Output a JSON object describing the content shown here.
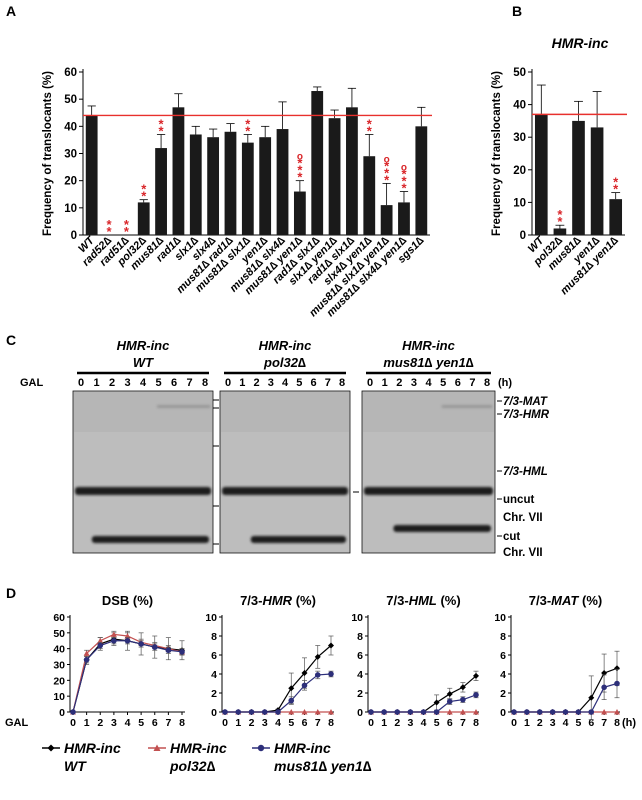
{
  "panels": {
    "A": "A",
    "B": "B",
    "C": "C",
    "D": "D"
  },
  "colors": {
    "bar": "#1a1a1a",
    "reference_line": "#e8302d",
    "significance": "#d9262a",
    "wt_series": "#000000",
    "pol32_series": "#c25050",
    "mus81yen1_series": "#2d2f7a",
    "gel_bg": "#b8b8b8"
  },
  "chart_data": [
    {
      "type": "bar",
      "panel": "A",
      "ylabel": "Frequency of translocants (%)",
      "ylim": [
        0,
        60
      ],
      "yticks": [
        0,
        10,
        20,
        30,
        40,
        50,
        60
      ],
      "reference_line": 44,
      "categories": [
        "WT",
        "rad52∆",
        "rad51∆",
        "pol32∆",
        "mus81∆",
        "rad1∆",
        "slx1∆",
        "slx4∆",
        "mus81∆ rad1∆",
        "mus81∆ slx1∆",
        "yen1∆",
        "mus81∆ slx4∆",
        "mus81∆ yen1∆",
        "rad1∆ slx1∆",
        "slx1∆ yen1∆",
        "rad1∆ slx1∆",
        "slx4∆ yen1∆",
        "mus81∆ slx1∆ yen1∆",
        "mus81∆ slx4∆ yen1∆",
        "sgs1∆"
      ],
      "values": [
        44,
        0,
        0,
        12,
        32,
        47,
        37,
        36,
        38,
        34,
        36,
        39,
        16,
        53,
        43,
        47,
        29,
        11,
        12,
        40
      ],
      "errors": [
        3.5,
        0,
        0,
        1,
        5,
        5,
        3,
        3,
        3,
        3,
        4,
        10,
        4,
        1.5,
        3,
        7,
        8,
        8,
        4,
        7
      ],
      "stars": [
        "",
        "**",
        "**",
        "**",
        "**",
        "",
        "",
        "",
        "",
        "**",
        "",
        "",
        "***",
        "",
        "",
        "",
        "**",
        "***",
        "***",
        ""
      ],
      "circles": [
        "",
        "",
        "",
        "",
        "",
        "",
        "",
        "",
        "",
        "",
        "",
        "",
        "o",
        "",
        "",
        "",
        "",
        "o",
        "o",
        ""
      ]
    },
    {
      "type": "bar",
      "panel": "B",
      "title": "HMR-inc",
      "ylabel": "Frequency of translocants (%)",
      "ylim": [
        0,
        50
      ],
      "yticks": [
        0,
        10,
        20,
        30,
        40,
        50
      ],
      "reference_line": 37,
      "categories": [
        "WT",
        "pol32∆",
        "mus81∆",
        "yen1∆",
        "mus81∆ yen1∆"
      ],
      "values": [
        37,
        2,
        35,
        33,
        11
      ],
      "errors": [
        9,
        1,
        6,
        11,
        2
      ],
      "stars": [
        "",
        "**",
        "",
        "",
        "**"
      ]
    },
    {
      "type": "line",
      "panel": "D",
      "title": "DSB (%)",
      "ylim": [
        0,
        60
      ],
      "yticks": [
        0,
        10,
        20,
        30,
        40,
        50,
        60
      ],
      "x": [
        0,
        1,
        2,
        3,
        4,
        5,
        6,
        7,
        8
      ],
      "series": [
        {
          "name": "HMR-inc WT",
          "values": [
            0,
            33,
            43,
            46,
            45,
            43,
            41,
            40,
            39
          ],
          "errors": [
            0,
            3,
            4,
            4,
            6,
            7,
            7,
            7,
            6
          ]
        },
        {
          "name": "HMR-inc pol32∆",
          "values": [
            0,
            37,
            45,
            49,
            48,
            44,
            42,
            40,
            38
          ],
          "errors": [
            0,
            2,
            2,
            2,
            2,
            2,
            2,
            2,
            2
          ]
        },
        {
          "name": "HMR-inc mus81∆ yen1∆",
          "values": [
            0,
            33,
            42,
            45,
            45,
            43,
            41,
            39,
            38
          ],
          "errors": [
            0,
            2,
            2,
            2,
            2,
            2,
            2,
            2,
            2
          ]
        }
      ]
    },
    {
      "type": "line",
      "panel": "D",
      "title": "7/3-HMR (%)",
      "ylim": [
        0,
        10
      ],
      "yticks": [
        0,
        2,
        4,
        6,
        8,
        10
      ],
      "x": [
        0,
        1,
        2,
        3,
        4,
        5,
        6,
        7,
        8
      ],
      "series": [
        {
          "name": "HMR-inc WT",
          "values": [
            0,
            0,
            0,
            0,
            0.2,
            2.5,
            4.1,
            5.8,
            7
          ],
          "errors": [
            0,
            0,
            0,
            0,
            0.1,
            1.6,
            1.6,
            1.2,
            1
          ]
        },
        {
          "name": "HMR-inc pol32∆",
          "values": [
            0,
            0,
            0,
            0,
            0,
            0,
            0,
            0,
            0
          ],
          "errors": [
            0,
            0,
            0,
            0,
            0,
            0,
            0,
            0,
            0
          ]
        },
        {
          "name": "HMR-inc mus81∆ yen1∆",
          "values": [
            0,
            0,
            0,
            0,
            0,
            1.2,
            2.8,
            3.9,
            4
          ],
          "errors": [
            0,
            0,
            0,
            0,
            0,
            0.4,
            0.5,
            0.4,
            0.3
          ]
        }
      ]
    },
    {
      "type": "line",
      "panel": "D",
      "title": "7/3-HML (%)",
      "ylim": [
        0,
        10
      ],
      "yticks": [
        0,
        2,
        4,
        6,
        8,
        10
      ],
      "x": [
        0,
        1,
        2,
        3,
        4,
        5,
        6,
        7,
        8
      ],
      "series": [
        {
          "name": "HMR-inc WT",
          "values": [
            0,
            0,
            0,
            0,
            0,
            1,
            1.9,
            2.6,
            3.8
          ],
          "errors": [
            0,
            0,
            0,
            0,
            0,
            0.8,
            0.6,
            0.5,
            0.5
          ]
        },
        {
          "name": "HMR-inc pol32∆",
          "values": [
            0,
            0,
            0,
            0,
            0,
            0,
            0,
            0,
            0
          ],
          "errors": [
            0,
            0,
            0,
            0,
            0,
            0,
            0,
            0,
            0
          ]
        },
        {
          "name": "HMR-inc mus81∆ yen1∆",
          "values": [
            0,
            0,
            0,
            0,
            0,
            0,
            1.1,
            1.3,
            1.8
          ],
          "errors": [
            0,
            0,
            0,
            0,
            0,
            0,
            0.3,
            0.3,
            0.3
          ]
        }
      ]
    },
    {
      "type": "line",
      "panel": "D",
      "title": "7/3-MAT (%)",
      "ylim": [
        0,
        10
      ],
      "yticks": [
        0,
        2,
        4,
        6,
        8,
        10
      ],
      "x": [
        0,
        1,
        2,
        3,
        4,
        5,
        6,
        7,
        8
      ],
      "series": [
        {
          "name": "HMR-inc WT",
          "values": [
            0,
            0,
            0,
            0,
            0,
            0,
            1.5,
            4.1,
            4.6
          ],
          "errors": [
            0,
            0,
            0,
            0,
            0,
            0,
            2.3,
            2,
            1.8
          ]
        },
        {
          "name": "HMR-inc pol32∆",
          "values": [
            0,
            0,
            0,
            0,
            0,
            0,
            0,
            0,
            0
          ],
          "errors": [
            0,
            0,
            0,
            0,
            0,
            0,
            0,
            0,
            0
          ]
        },
        {
          "name": "HMR-inc mus81∆ yen1∆",
          "values": [
            0,
            0,
            0,
            0,
            0,
            0,
            0,
            2.6,
            3
          ],
          "errors": [
            0,
            0,
            0,
            0,
            0,
            0,
            0,
            1.3,
            1.5
          ]
        }
      ]
    }
  ],
  "panelD": {
    "x_prefix": "GAL",
    "x_unit": "(h)"
  },
  "gel": {
    "gal_label": "GAL",
    "lanes": [
      "0",
      "1",
      "2",
      "3",
      "4",
      "5",
      "6",
      "7",
      "8"
    ],
    "unit": "(h)",
    "strains": [
      {
        "line1": "HMR-inc",
        "line2": "WT"
      },
      {
        "line1": "HMR-inc",
        "line2": "pol32∆"
      },
      {
        "line1": "HMR-inc",
        "line2": "mus81∆ yen1∆"
      }
    ],
    "band_labels": {
      "mat": "7/3-MAT",
      "hmr": "7/3-HMR",
      "hml": "7/3-HML",
      "uncut": "uncut",
      "uncut2": "Chr. VII",
      "cut": "cut",
      "cut2": "Chr. VII"
    }
  },
  "legend": [
    {
      "line1": "HMR-inc",
      "line2": "WT"
    },
    {
      "line1": "HMR-inc",
      "line2": "pol32∆"
    },
    {
      "line1": "HMR-inc",
      "line2": "mus81∆ yen1∆"
    }
  ]
}
